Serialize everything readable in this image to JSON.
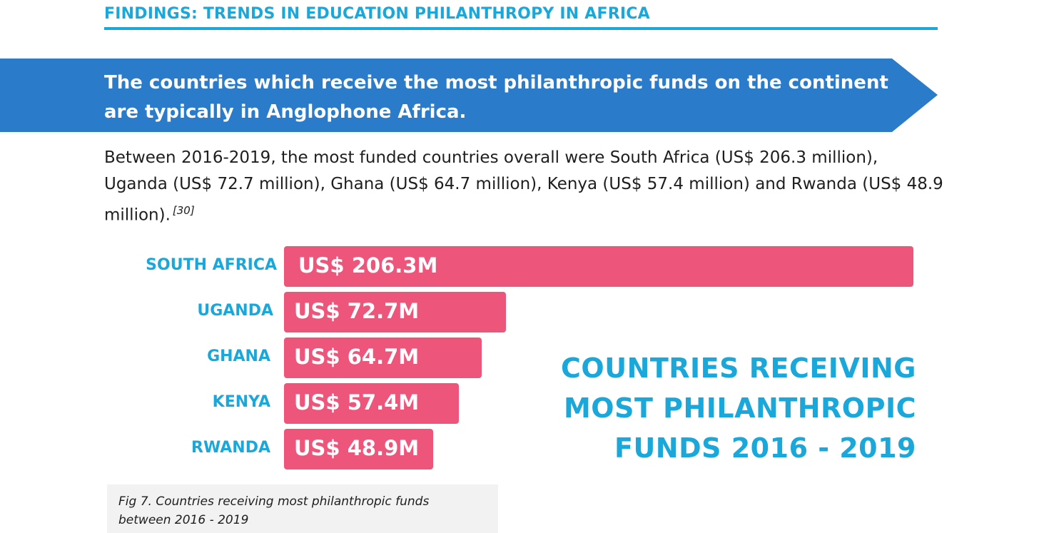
{
  "section_title": "FINDINGS: TRENDS IN EDUCATION PHILANTHROPY IN AFRICA",
  "banner": {
    "line1": "The countries which receive the most philanthropic funds on the continent",
    "line2": "are typically in Anglophone Africa."
  },
  "body": {
    "text": "Between 2016-2019, the most funded countries overall were South Africa (US$ 206.3 million), Uganda (US$ 72.7 million), Ghana (US$ 64.7 million), Kenya (US$ 57.4 million) and Rwanda (US$ 48.9 million).",
    "footnote": "[30]"
  },
  "chart_data": {
    "type": "bar",
    "orientation": "horizontal",
    "title": "COUNTRIES RECEIVING MOST PHILANTHROPIC FUNDS 2016 - 2019",
    "title_lines": [
      "COUNTRIES RECEIVING",
      "MOST PHILANTHROPIC",
      "FUNDS 2016 - 2019"
    ],
    "unit": "US$ million",
    "categories": [
      "SOUTH AFRICA",
      "UGANDA",
      "GHANA",
      "KENYA",
      "RWANDA"
    ],
    "values": [
      206.3,
      72.7,
      64.7,
      57.4,
      48.9
    ],
    "data_labels": [
      "US$ 206.3M",
      "US$ 72.7M",
      "US$ 64.7M",
      "US$ 57.4M",
      "US$ 48.9M"
    ],
    "bar_color": "#ee557a",
    "label_color": "#1aa7d9",
    "grid": false
  },
  "caption": {
    "line1": "Fig 7. Countries receiving most philanthropic funds",
    "line2": "between 2016 - 2019"
  },
  "colors": {
    "accent": "#1aa7d9",
    "banner": "#2a7bc9",
    "bar": "#ee557a"
  }
}
